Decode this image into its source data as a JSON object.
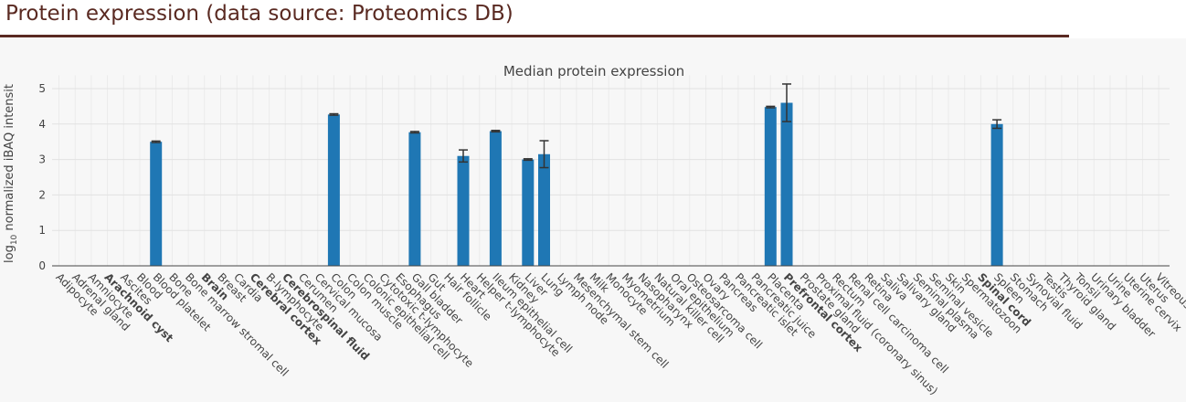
{
  "page": {
    "heading": "Protein expression (data source: Proteomics DB)"
  },
  "chart_data": {
    "type": "bar",
    "title": "Median protein expression",
    "ylabel_prefix": "log",
    "ylabel_sub": "10",
    "ylabel_rest": " normalized iBAQ intensit",
    "ylim": [
      0,
      5.3
    ],
    "yticks": [
      0,
      1,
      2,
      3,
      4,
      5
    ],
    "grid": true,
    "bar_color": "#1f77b4",
    "categories": [
      "Adipocyte",
      "Adrenal gland",
      "Amniocyte",
      "Arachnoid cyst",
      "Ascites",
      "Blood",
      "Blood platelet",
      "Bone",
      "Bone marrow stromal cell",
      "Brain",
      "Breast",
      "Cardia",
      "Cerebral cortex",
      "B-lymphocyte",
      "Cerebrospinal fluid",
      "Cerumen",
      "Cervical mucosa",
      "Colon",
      "Colon muscle",
      "Colonic epithelial cell",
      "Cytotoxic t-lymphocyte",
      "Esophagus",
      "Gall bladder",
      "Gut",
      "Hair follicle",
      "Heart",
      "Helper t-lymphocyte",
      "Ileum epithelial cell",
      "Kidney",
      "Liver",
      "Lung",
      "Lymph node",
      "Mesenchymal stem cell",
      "Milk",
      "Monocyte",
      "Myometrium",
      "Nasopharynx",
      "Natural killer cell",
      "Oral epithelium",
      "Osteosarcoma cell",
      "Ovary",
      "Pancreas",
      "Pancreatic islet",
      "Pancreatic juice",
      "Placenta",
      "Prefrontal cortex",
      "Prostate gland",
      "Proximal fluid (coronary sinus)",
      "Rectum",
      "Renal cell carcinoma cell",
      "Retina",
      "Saliva",
      "Salivary gland",
      "Seminal plasma",
      "Seminal vesicle",
      "Skin",
      "Spermatozoon",
      "Spinal cord",
      "Spleen",
      "Stomach",
      "Synovial fluid",
      "Testis",
      "Thyroid gland",
      "Tonsil",
      "Urinary bladder",
      "Urine",
      "Uterine cervix",
      "Uterus",
      "Vitreous"
    ],
    "bold_categories": [
      "Arachnoid cyst",
      "Brain",
      "Cerebral cortex",
      "Cerebrospinal fluid",
      "Prefrontal cortex",
      "Spinal cord"
    ],
    "values": [
      null,
      null,
      null,
      null,
      null,
      null,
      3.5,
      null,
      null,
      null,
      null,
      null,
      null,
      null,
      null,
      null,
      null,
      4.27,
      null,
      null,
      null,
      null,
      3.77,
      null,
      null,
      3.1,
      null,
      3.8,
      null,
      3.0,
      3.15,
      null,
      null,
      null,
      null,
      null,
      null,
      null,
      null,
      null,
      null,
      null,
      null,
      null,
      4.48,
      4.6,
      null,
      null,
      null,
      null,
      null,
      null,
      null,
      null,
      null,
      null,
      null,
      null,
      4.0,
      null,
      null,
      null,
      null,
      null,
      null,
      null,
      null,
      null,
      null
    ],
    "errors": [
      null,
      null,
      null,
      null,
      null,
      null,
      0.02,
      null,
      null,
      null,
      null,
      null,
      null,
      null,
      null,
      null,
      null,
      0.02,
      null,
      null,
      null,
      null,
      0.02,
      null,
      null,
      0.17,
      null,
      0.02,
      null,
      0.02,
      0.38,
      null,
      null,
      null,
      null,
      null,
      null,
      null,
      null,
      null,
      null,
      null,
      null,
      null,
      0.02,
      0.53,
      null,
      null,
      null,
      null,
      null,
      null,
      null,
      null,
      null,
      null,
      null,
      null,
      0.12,
      null,
      null,
      null,
      null,
      null,
      null,
      null,
      null,
      null,
      null
    ]
  }
}
